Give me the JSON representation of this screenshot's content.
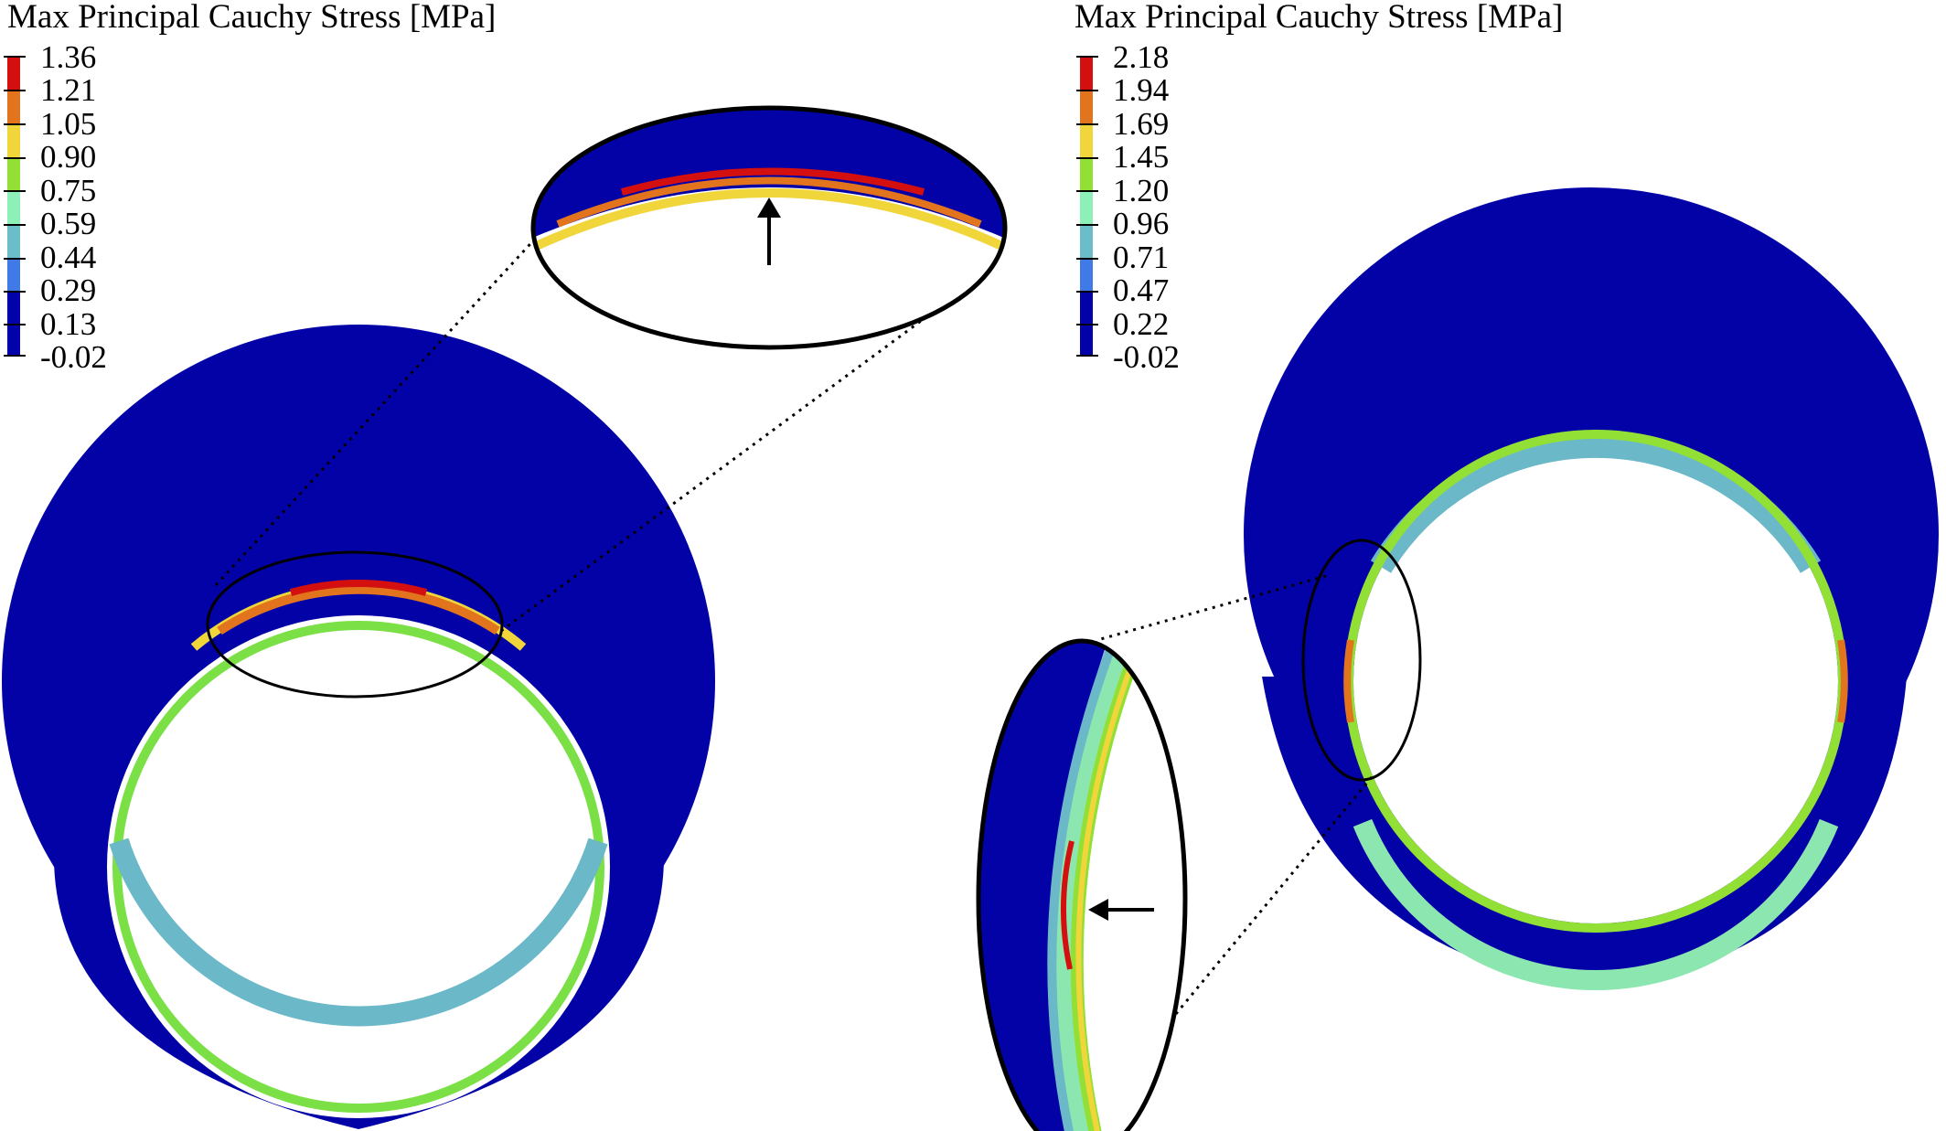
{
  "legends": [
    {
      "title": "Max Principal Cauchy Stress [MPa]",
      "ticks": [
        "1.36",
        "1.21",
        "1.05",
        "0.90",
        "0.75",
        "0.59",
        "0.44",
        "0.29",
        "0.13",
        "-0.02"
      ]
    },
    {
      "title": "Max Principal Cauchy Stress [MPa]",
      "ticks": [
        "2.18",
        "1.94",
        "1.69",
        "1.45",
        "1.20",
        "0.96",
        "0.71",
        "0.47",
        "0.22",
        "-0.02"
      ]
    }
  ],
  "colormap": [
    "#d40f0f",
    "#e2741e",
    "#f0d63a",
    "#92e035",
    "#8cf0b8",
    "#6bbdc9",
    "#3f7ae6",
    "#0202a8"
  ],
  "colors": {
    "tissue": "#0202a6",
    "peak": "#d40f0f",
    "outline": "#000000"
  }
}
